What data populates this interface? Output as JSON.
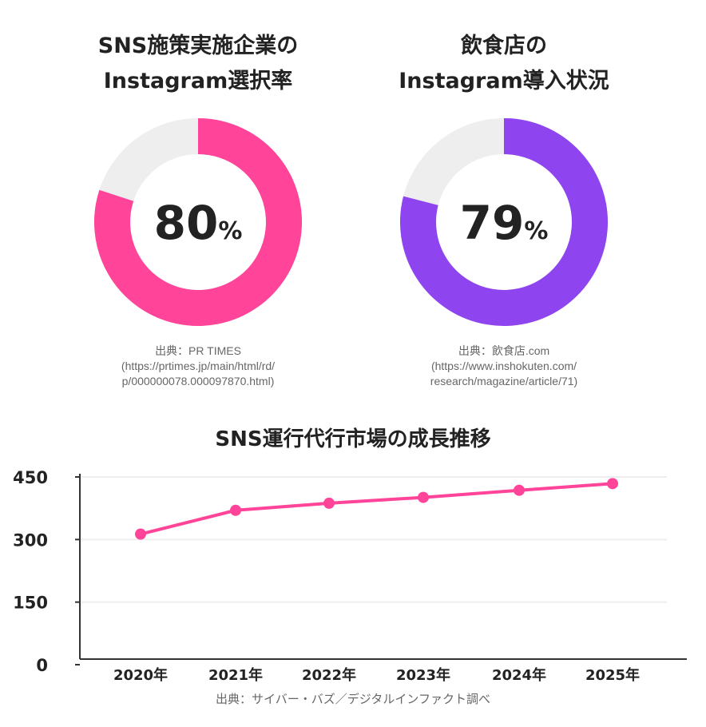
{
  "donuts": [
    {
      "title1": "SNS施策実施企業の",
      "title2": "Instagram選択率",
      "value": 80,
      "unit": "%",
      "color": "#FF4499",
      "source": [
        "出典：PR TIMES",
        "(https://prtimes.jp/main/html/rd/",
        "p/000000078.000097870.html)"
      ]
    },
    {
      "title1": "飲食店の",
      "title2": "Instagram導入状況",
      "value": 79,
      "unit": "%",
      "color": "#8E44EE",
      "source": [
        "出典：飲食店.com",
        "(https://www.inshokuten.com/",
        "research/magazine/article/71)"
      ]
    }
  ],
  "chart_data": {
    "type": "line",
    "title": "SNS運行代行市場の成長推移",
    "categories": [
      "2020年",
      "2021年",
      "2022年",
      "2023年",
      "2024年",
      "2025年"
    ],
    "values": [
      313,
      370,
      387,
      401,
      418,
      434
    ],
    "ylim": [
      0,
      450
    ],
    "yticks": [
      "0",
      "150",
      "300",
      "450"
    ],
    "grid": true,
    "color": "#FF4499",
    "source": "出典：サイバー・バズ／デジタルインファクト調べ"
  }
}
